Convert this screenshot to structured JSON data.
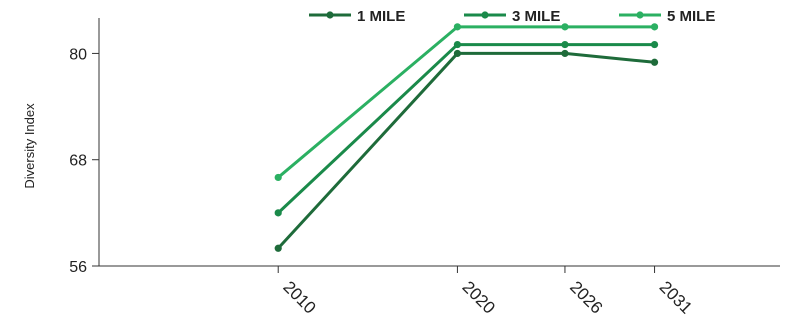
{
  "chart_data": {
    "type": "line",
    "title": "",
    "xlabel": "",
    "ylabel": "Diversity Index",
    "x": [
      2010,
      2020,
      2026,
      2031
    ],
    "x_tick_labels": [
      "2010",
      "2020",
      "2026",
      "2031"
    ],
    "x_range": [
      2000,
      2038
    ],
    "ylim": [
      56,
      84
    ],
    "y_ticks": [
      56,
      68,
      80
    ],
    "y_tick_labels": [
      "56",
      "68",
      "80"
    ],
    "grid": false,
    "legend_position": "top",
    "series": [
      {
        "name": "1 MILE",
        "values": [
          58,
          80,
          80,
          79
        ],
        "color": "#1e6b3a"
      },
      {
        "name": "3 MILE",
        "values": [
          62,
          81,
          81,
          81
        ],
        "color": "#1a8a4a"
      },
      {
        "name": "5 MILE",
        "values": [
          66,
          83,
          83,
          83
        ],
        "color": "#2bb062"
      }
    ]
  }
}
